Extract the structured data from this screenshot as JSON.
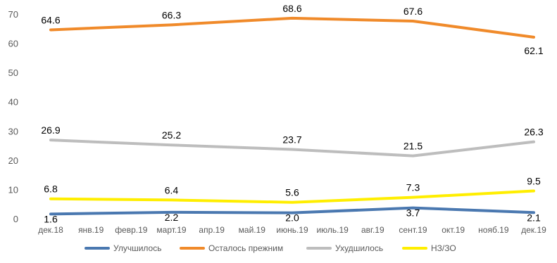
{
  "chart_data": {
    "type": "line",
    "title": "",
    "xlabel": "",
    "ylabel": "",
    "categories": [
      "дек.18",
      "янв.19",
      "февр.19",
      "март.19",
      "апр.19",
      "май.19",
      "июнь.19",
      "июль.19",
      "авг.19",
      "сент.19",
      "окт.19",
      "нояб.19",
      "дек.19"
    ],
    "ylim": [
      0,
      70
    ],
    "yticks": [
      0,
      10,
      20,
      30,
      40,
      50,
      60,
      70
    ],
    "grid": false,
    "legend_position": "bottom",
    "series": [
      {
        "name": "Улучшилось",
        "color": "#4a78b0",
        "values": [
          1.6,
          null,
          null,
          2.2,
          null,
          null,
          2.0,
          null,
          null,
          3.7,
          null,
          null,
          2.1
        ],
        "labels": [
          "1.6",
          null,
          null,
          "2.2",
          null,
          null,
          "2.0",
          null,
          null,
          "3.7",
          null,
          null,
          "2.1"
        ]
      },
      {
        "name": "Осталось прежним",
        "color": "#f08a2a",
        "values": [
          64.6,
          null,
          null,
          66.3,
          null,
          null,
          68.6,
          null,
          null,
          67.6,
          null,
          null,
          62.1
        ],
        "labels": [
          "64.6",
          null,
          null,
          "66.3",
          null,
          null,
          "68.6",
          null,
          null,
          "67.6",
          null,
          null,
          "62.1"
        ]
      },
      {
        "name": "Ухудшилось",
        "color": "#bdbdbd",
        "values": [
          26.9,
          null,
          null,
          25.2,
          null,
          null,
          23.7,
          null,
          null,
          21.5,
          null,
          null,
          26.3
        ],
        "labels": [
          "26.9",
          null,
          null,
          "25.2",
          null,
          null,
          "23.7",
          null,
          null,
          "21.5",
          null,
          null,
          "26.3"
        ]
      },
      {
        "name": "НЗ/ЗО",
        "color": "#ffee00",
        "values": [
          6.8,
          null,
          null,
          6.4,
          null,
          null,
          5.6,
          null,
          null,
          7.3,
          null,
          null,
          9.5
        ],
        "labels": [
          "6.8",
          null,
          null,
          "6.4",
          null,
          null,
          "5.6",
          null,
          null,
          "7.3",
          null,
          null,
          "9.5"
        ]
      }
    ]
  }
}
